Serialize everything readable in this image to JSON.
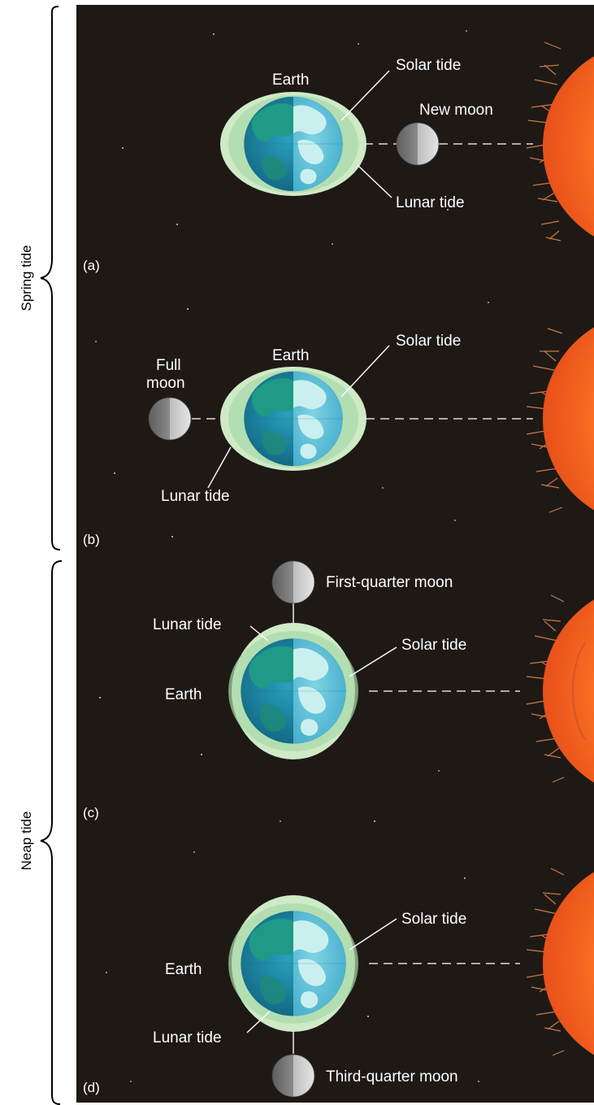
{
  "groups": {
    "spring": "Spring tide",
    "neap": "Neap tide"
  },
  "panels": [
    {
      "letter": "(a)",
      "earth": "Earth",
      "solar_tide": "Solar tide",
      "lunar_tide": "Lunar tide",
      "moon": "New moon"
    },
    {
      "letter": "(b)",
      "earth": "Earth",
      "solar_tide": "Solar tide",
      "lunar_tide": "Lunar tide",
      "moon_line1": "Full",
      "moon_line2": "moon"
    },
    {
      "letter": "(c)",
      "earth": "Earth",
      "solar_tide": "Solar tide",
      "lunar_tide": "Lunar tide",
      "moon": "First-quarter moon"
    },
    {
      "letter": "(d)",
      "earth": "Earth",
      "solar_tide": "Solar tide",
      "lunar_tide": "Lunar tide",
      "moon": "Third-quarter moon"
    }
  ],
  "colors": {
    "space": "#1e1915",
    "tide_bulge": "#cfeac6",
    "earth_ocean": "#1e8aa6",
    "earth_land": "#1f9a86",
    "earth_day": "#aee6ea",
    "moon": "#9a9a9a",
    "sun": "#ff6a1e",
    "corona": "#c87a46"
  }
}
